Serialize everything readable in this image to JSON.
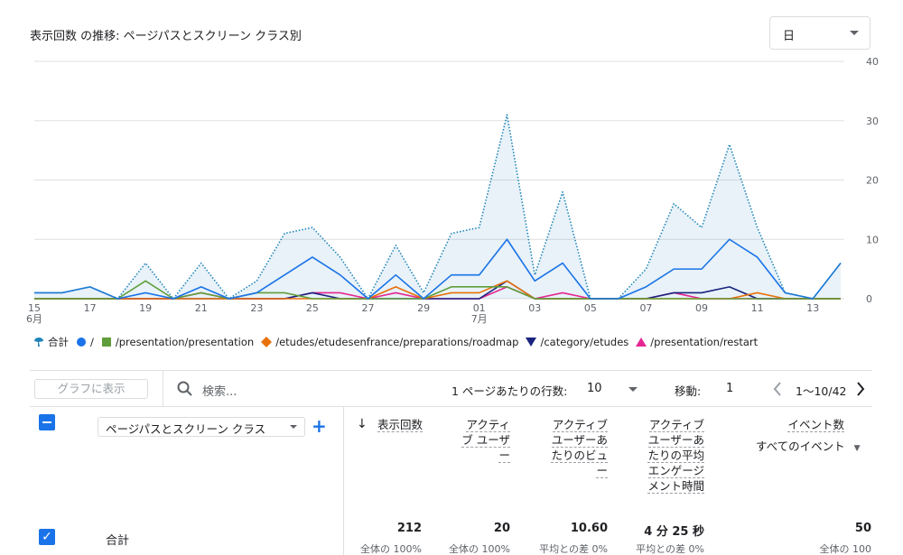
{
  "header": {
    "title": "表示回数 の推移: ページパスとスクリーン クラス別",
    "granularity": "日"
  },
  "chart_data": {
    "type": "line",
    "categories": [
      "15",
      null,
      "17",
      null,
      "19",
      null,
      "21",
      null,
      "23",
      null,
      "25",
      null,
      "27",
      null,
      "29",
      null,
      "01",
      null,
      "03",
      null,
      "05",
      null,
      "07",
      null,
      "09",
      null,
      "11",
      null,
      "13",
      null
    ],
    "months": [
      "6月",
      "7月"
    ],
    "ylim": [
      0,
      40
    ],
    "yticks": [
      0,
      10,
      20,
      30,
      40
    ],
    "grid": true,
    "y_axis_side": "right",
    "series": [
      {
        "name": "合計",
        "color": "#1f84b9",
        "style": "dotted",
        "area": true,
        "values": [
          1,
          1,
          2,
          0,
          6,
          0,
          6,
          0,
          3,
          11,
          12,
          7,
          0,
          9,
          1,
          11,
          12,
          31,
          4,
          18,
          0,
          0,
          5,
          16,
          12,
          26,
          12,
          1,
          0,
          6
        ]
      },
      {
        "name": "/",
        "color": "#1a73e8",
        "style": "solid",
        "values": [
          1,
          1,
          2,
          0,
          1,
          0,
          2,
          0,
          1,
          4,
          7,
          4,
          0,
          4,
          0,
          4,
          4,
          10,
          3,
          6,
          0,
          0,
          2,
          5,
          5,
          10,
          7,
          1,
          0,
          6
        ]
      },
      {
        "name": "/presentation/presentation",
        "color": "#5f9e3b",
        "style": "solid",
        "values": [
          0,
          0,
          0,
          0,
          3,
          0,
          1,
          0,
          1,
          1,
          0,
          0,
          0,
          0,
          0,
          2,
          2,
          2,
          0,
          0,
          0,
          0,
          0,
          0,
          0,
          0,
          0,
          0,
          0,
          0
        ]
      },
      {
        "name": "/etudes/etudesenfrance/preparations/roadmap",
        "color": "#e8710a",
        "style": "solid",
        "values": [
          0,
          0,
          0,
          0,
          0,
          0,
          0,
          0,
          0,
          0,
          0,
          0,
          0,
          2,
          0,
          1,
          1,
          3,
          0,
          0,
          0,
          0,
          0,
          0,
          0,
          0,
          1,
          0,
          0,
          0
        ]
      },
      {
        "name": "/category/etudes",
        "color": "#1a237e",
        "style": "solid",
        "values": [
          0,
          0,
          0,
          0,
          0,
          0,
          0,
          0,
          0,
          0,
          1,
          0,
          0,
          0,
          0,
          0,
          0,
          3,
          0,
          0,
          0,
          0,
          0,
          1,
          1,
          2,
          0,
          0,
          0,
          0
        ]
      },
      {
        "name": "/presentation/restart",
        "color": "#e52592",
        "style": "solid",
        "values": [
          0,
          0,
          0,
          0,
          0,
          0,
          1,
          0,
          0,
          0,
          1,
          1,
          0,
          1,
          0,
          0,
          0,
          2,
          0,
          1,
          0,
          0,
          0,
          1,
          0,
          0,
          0,
          0,
          0,
          0
        ]
      }
    ]
  },
  "toolbar": {
    "plot_button": "グラフに表示",
    "search": "検索...",
    "rows_label": "1 ページあたりの行数:",
    "rows_value": "10",
    "goto_label": "移動:",
    "goto_value": "1",
    "range": "1〜10/42"
  },
  "table": {
    "dimension": "ページパスとスクリーン クラス",
    "columns": [
      "表示回数",
      "アクティブ ユーザー",
      "アクティブ ユーザーあたりのビュー",
      "アクティブ ユーザーあたりの平均エンゲージメント時間",
      "イベント数"
    ],
    "event_filter": "すべてのイベント",
    "total": {
      "label": "合計",
      "values": [
        "212",
        "20",
        "10.60",
        "4 分 25 秒",
        "50"
      ],
      "notes": [
        "全体の 100%",
        "全体の 100%",
        "平均との差 0%",
        "平均との差 0%",
        "全体の 100"
      ]
    }
  }
}
